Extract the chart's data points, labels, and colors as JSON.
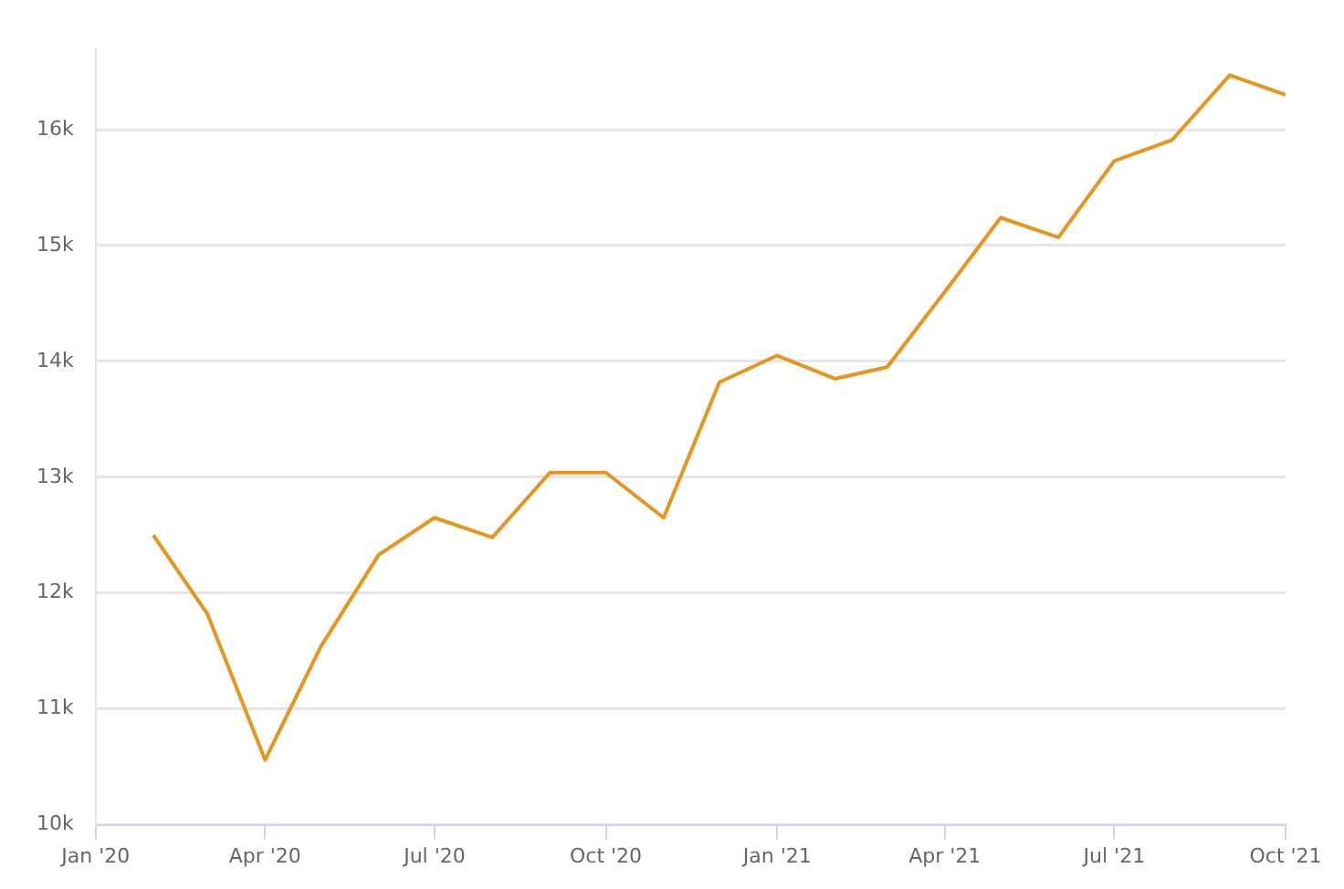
{
  "chart_data": {
    "type": "line",
    "x": [
      "2020-02",
      "2020-03",
      "2020-04",
      "2020-05",
      "2020-06",
      "2020-07",
      "2020-08",
      "2020-09",
      "2020-10",
      "2020-11",
      "2020-12",
      "2021-01",
      "2021-02",
      "2021-03",
      "2021-04",
      "2021-05",
      "2021-06",
      "2021-07",
      "2021-08",
      "2021-09",
      "2021-10"
    ],
    "series": [
      {
        "color": "#e8951e",
        "values": [
          12500,
          11820,
          10560,
          11540,
          12330,
          12650,
          12480,
          13040,
          13040,
          12650,
          13820,
          14050,
          13850,
          13950,
          14600,
          15240,
          15070,
          15730,
          15910,
          16470,
          16300
        ]
      }
    ],
    "xlim": [
      "2020-01",
      "2021-10"
    ],
    "xticks": [
      {
        "value": "2020-01",
        "label": "Jan '20"
      },
      {
        "value": "2020-04",
        "label": "Apr '20"
      },
      {
        "value": "2020-07",
        "label": "Jul '20"
      },
      {
        "value": "2020-10",
        "label": "Oct '20"
      },
      {
        "value": "2021-01",
        "label": "Jan '21"
      },
      {
        "value": "2021-04",
        "label": "Apr '21"
      },
      {
        "value": "2021-07",
        "label": "Jul '21"
      },
      {
        "value": "2021-10",
        "label": "Oct '21"
      }
    ],
    "ylim": [
      10000,
      16700
    ],
    "yticks": [
      {
        "value": 10000,
        "label": "10k"
      },
      {
        "value": 11000,
        "label": "11k"
      },
      {
        "value": 12000,
        "label": "12k"
      },
      {
        "value": 13000,
        "label": "13k"
      },
      {
        "value": 14000,
        "label": "14k"
      },
      {
        "value": 15000,
        "label": "15k"
      },
      {
        "value": 16000,
        "label": "16k"
      }
    ],
    "grid": "y",
    "legend": false,
    "marker": "none",
    "line_style": "solid"
  }
}
